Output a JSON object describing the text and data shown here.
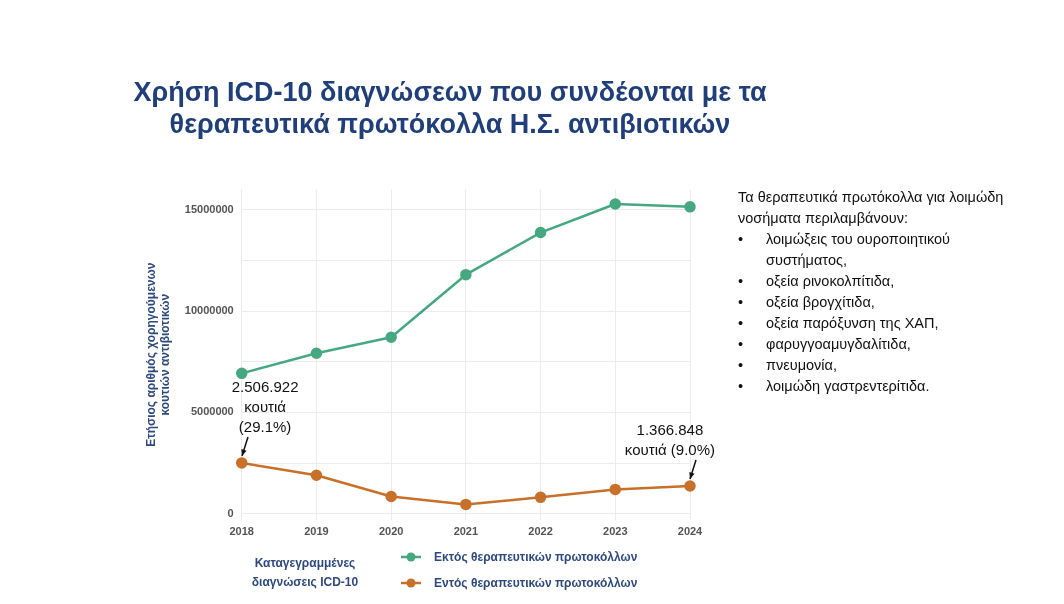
{
  "chart_data": {
    "type": "line",
    "title": "Χρήση ICD-10 διαγνώσεων που συνδέονται με τα θεραπευτικά πρωτόκολλα Η.Σ. αντιβιοτικών",
    "ylabel": "Ετήσιος αριθμός χορηγούμενων\nκουτιών αντιβιοτικών",
    "legend_title": "Καταγεγραμμένες\nδιαγνώσεις ICD-10",
    "categories": [
      "2018",
      "2019",
      "2020",
      "2021",
      "2022",
      "2023",
      "2024"
    ],
    "series": [
      {
        "name": "Εκτός θεραπευτικών πρωτοκόλλων",
        "color": "#45a881",
        "values": [
          6930000,
          7920000,
          8710000,
          11800000,
          13880000,
          15290000,
          15150000
        ]
      },
      {
        "name": "Εντός θεραπευτικών πρωτοκόλλων",
        "color": "#c8702a",
        "values": [
          2506922,
          1900000,
          850000,
          460000,
          810000,
          1200000,
          1366848
        ]
      }
    ],
    "ylim": [
      -300000,
      16000000
    ],
    "yticks": [
      0,
      {
        "value": 2500000,
        "label": null
      },
      5000000,
      {
        "value": 7500000,
        "label": null
      },
      10000000,
      {
        "value": 12500000,
        "label": null
      },
      15000000
    ],
    "grid": true,
    "legend": "bottom",
    "marker": "circle",
    "line_style": "solid",
    "annotations": [
      {
        "text": "2.506.922\nκουτιά\n(29.1%)",
        "x": "2018",
        "y": 2506922
      },
      {
        "text": "1.366.848\nκουτιά (9.0%)",
        "x": "2024",
        "y": 1366848
      },
      "Τα θεραπευτικά πρωτόκολλα για λοιμώδη νοσήματα περιλαμβάνουν:\n• λοιμώξεις του ουροποιητικού συστήματος,\n• οξεία ρινοκολπίτιδα,\n• οξεία βρογχίτιδα,\n• οξεία παρόξυνση της ΧΑΠ,\n• φαρυγγοαμυγδαλίτιδα,\n• πνευμονία,\n• λοιμώδη γαστρεντερίτιδα."
    ]
  }
}
